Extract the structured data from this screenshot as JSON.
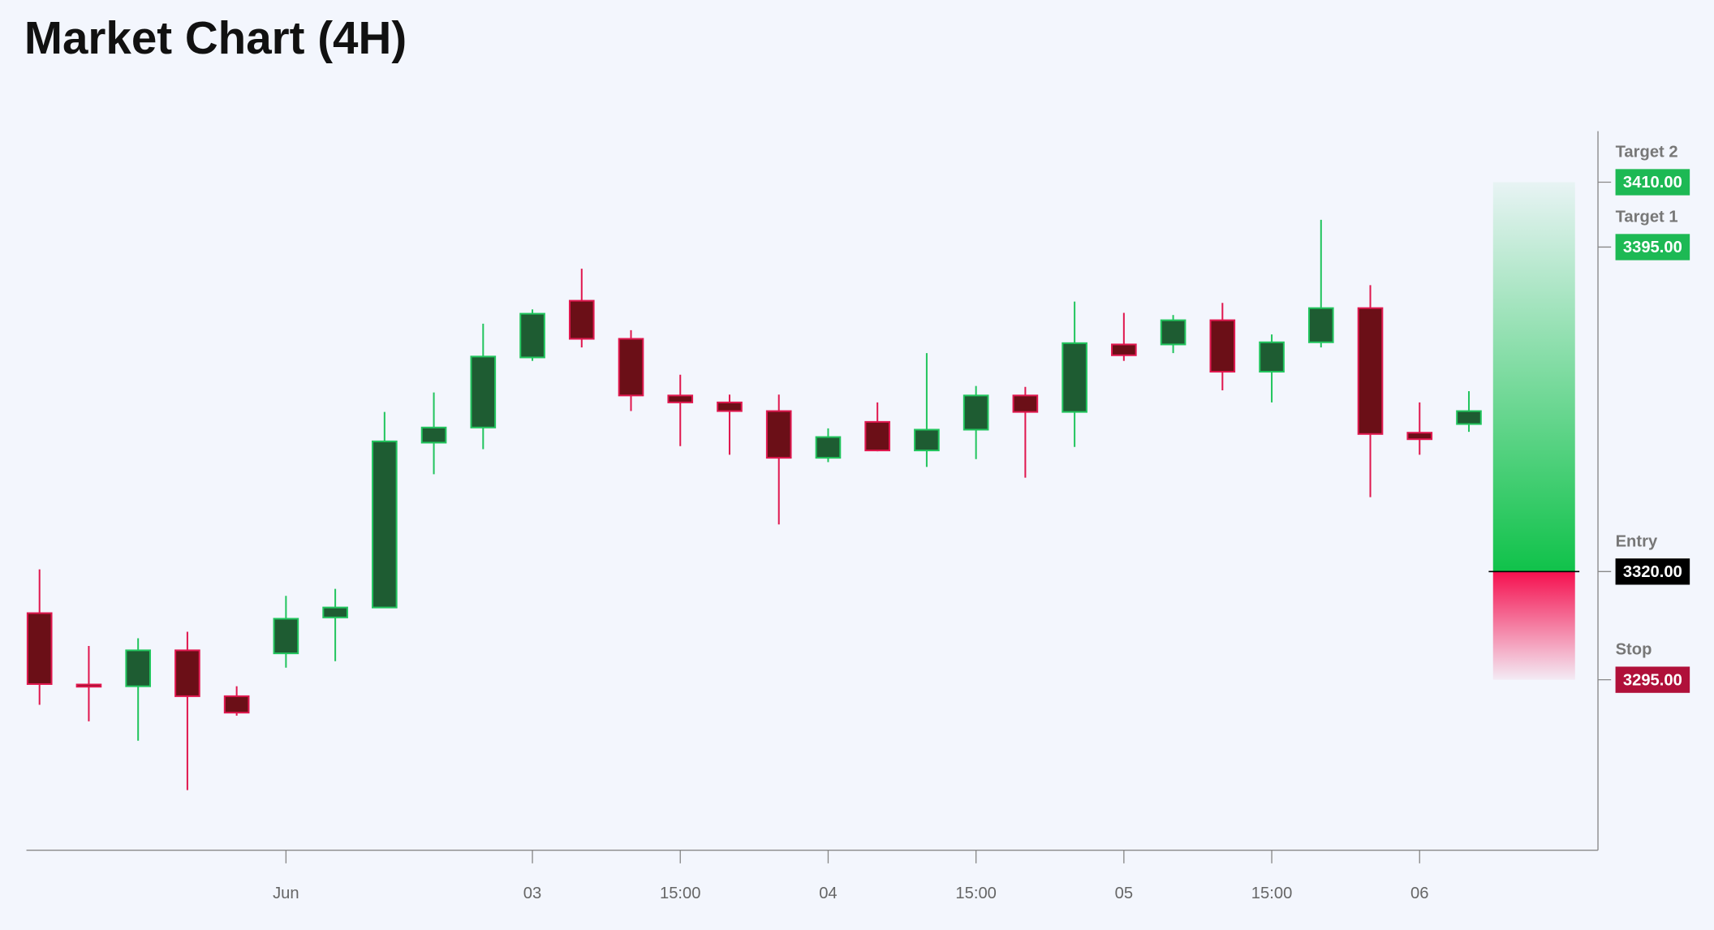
{
  "chart_data": {
    "type": "candlestick",
    "title": "Market Chart (4H)",
    "categories": [
      null,
      null,
      null,
      null,
      null,
      "Jun",
      null,
      null,
      null,
      null,
      "03",
      null,
      null,
      "15:00",
      null,
      null,
      "04",
      null,
      null,
      "15:00",
      null,
      null,
      "05",
      null,
      null,
      "15:00",
      null,
      null,
      "06",
      null
    ],
    "open": [
      3310.4,
      3293.9,
      3293.5,
      3301.8,
      3291.2,
      3301.1,
      3309.4,
      3311.7,
      3349.8,
      3353.3,
      3369.5,
      3382.6,
      3373.8,
      3360.7,
      3359.1,
      3357.1,
      3346.3,
      3354.6,
      3348.0,
      3352.8,
      3360.7,
      3356.9,
      3372.5,
      3372.5,
      3378.1,
      3366.2,
      3373.0,
      3380.9,
      3352.1,
      3354.1
    ],
    "high": [
      3320.5,
      3302.8,
      3304.6,
      3306.1,
      3293.5,
      3314.4,
      3316.0,
      3356.9,
      3361.4,
      3377.3,
      3380.6,
      3390.0,
      3375.8,
      3365.5,
      3360.9,
      3360.9,
      3353.1,
      3359.1,
      3370.5,
      3362.9,
      3362.7,
      3382.4,
      3379.8,
      3379.3,
      3382.1,
      3374.8,
      3401.3,
      3386.2,
      3359.1,
      3361.7
    ],
    "low": [
      3289.2,
      3285.4,
      3280.9,
      3269.5,
      3286.7,
      3297.8,
      3299.3,
      3311.7,
      3342.5,
      3348.3,
      3368.7,
      3371.8,
      3357.1,
      3349.0,
      3347.0,
      3330.9,
      3345.3,
      3347.8,
      3344.2,
      3346.0,
      3341.7,
      3348.8,
      3368.7,
      3370.5,
      3361.9,
      3359.1,
      3371.8,
      3337.2,
      3347.0,
      3352.3
    ],
    "close": [
      3294.0,
      3293.5,
      3301.8,
      3291.2,
      3287.4,
      3309.1,
      3311.7,
      3350.1,
      3353.3,
      3369.7,
      3379.6,
      3373.8,
      3360.7,
      3359.1,
      3357.1,
      3346.3,
      3351.1,
      3348.0,
      3352.8,
      3360.7,
      3356.9,
      3372.8,
      3370.0,
      3378.1,
      3366.2,
      3373.0,
      3380.9,
      3351.8,
      3350.6,
      3357.1
    ],
    "up_color": "#22c55e",
    "down_color": "#e0184f",
    "ylim": [
      3255.6,
      3421.8
    ],
    "levels": [
      {
        "name": "Target 2",
        "value": 3410,
        "value_label": "3410.00",
        "color": "#1db954"
      },
      {
        "name": "Target 1",
        "value": 3395,
        "value_label": "3395.00",
        "color": "#1db954"
      },
      {
        "name": "Entry",
        "value": 3320,
        "value_label": "3320.00",
        "color": "#000000"
      },
      {
        "name": "Stop",
        "value": 3295,
        "value_label": "3295.00",
        "color": "#b0103a"
      }
    ]
  }
}
